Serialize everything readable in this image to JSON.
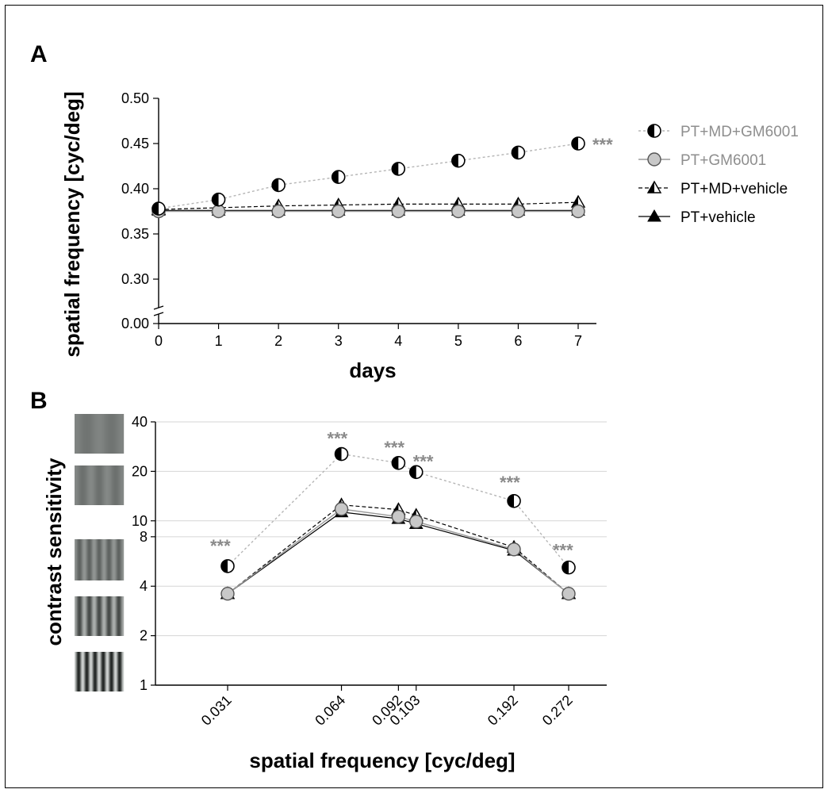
{
  "panels": {
    "a_label": "A",
    "b_label": "B"
  },
  "chart_data": [
    {
      "type": "line",
      "panel": "A",
      "title": "",
      "xlabel": "days",
      "ylabel": "spatial frequency [cyc/deg]",
      "x": [
        0,
        1,
        2,
        3,
        4,
        5,
        6,
        7
      ],
      "x_ticks": [
        "0",
        "1",
        "2",
        "3",
        "4",
        "5",
        "6",
        "7"
      ],
      "y_ticks": [
        "0.00",
        "0.30",
        "0.35",
        "0.40",
        "0.45",
        "0.50"
      ],
      "ylim": [
        0.3,
        0.5
      ],
      "y_axis_break": true,
      "legend_position": "right",
      "series": [
        {
          "name": "PT+MD+GM6001",
          "marker": "half-circle",
          "line": "dotted-gray",
          "color": "#aaaaaa",
          "values": [
            0.378,
            0.388,
            0.404,
            0.413,
            0.422,
            0.431,
            0.44,
            0.45
          ]
        },
        {
          "name": "PT+GM6001",
          "marker": "gray-circle",
          "line": "solid-gray",
          "color": "#888888",
          "values": [
            0.375,
            0.375,
            0.375,
            0.375,
            0.375,
            0.375,
            0.375,
            0.375
          ]
        },
        {
          "name": "PT+MD+vehicle",
          "marker": "half-triangle",
          "line": "dashed-black",
          "color": "#000000",
          "values": [
            0.377,
            0.379,
            0.381,
            0.382,
            0.383,
            0.383,
            0.383,
            0.385
          ]
        },
        {
          "name": "PT+vehicle",
          "marker": "black-triangle",
          "line": "solid-black",
          "color": "#000000",
          "values": [
            0.376,
            0.376,
            0.376,
            0.376,
            0.376,
            0.376,
            0.376,
            0.376
          ]
        }
      ],
      "annotations": [
        {
          "x": 7,
          "text": "***"
        }
      ]
    },
    {
      "type": "line",
      "panel": "B",
      "title": "",
      "xlabel": "spatial frequency [cyc/deg]",
      "ylabel": "contrast sensitivity",
      "y_scale": "log",
      "x_scale": "log",
      "categories": [
        "0.031",
        "0.064",
        "0.092",
        "0.103",
        "0.192",
        "0.272"
      ],
      "x": [
        0.031,
        0.064,
        0.092,
        0.103,
        0.192,
        0.272
      ],
      "y_ticks": [
        1,
        2,
        4,
        8,
        10,
        20,
        40
      ],
      "ylim": [
        1,
        40
      ],
      "grid": true,
      "series": [
        {
          "name": "PT+MD+GM6001",
          "marker": "half-circle",
          "values": [
            5.3,
            25.5,
            22.5,
            19.8,
            13.2,
            5.2
          ]
        },
        {
          "name": "PT+GM6001",
          "marker": "gray-circle",
          "values": [
            3.6,
            11.8,
            10.6,
            9.9,
            6.7,
            3.6
          ]
        },
        {
          "name": "PT+MD+vehicle",
          "marker": "half-triangle",
          "values": [
            3.6,
            12.5,
            11.7,
            10.8,
            6.9,
            3.6
          ]
        },
        {
          "name": "PT+vehicle",
          "marker": "black-triangle",
          "values": [
            3.6,
            11.3,
            10.3,
            9.6,
            6.6,
            3.6
          ]
        }
      ],
      "annotations": [
        {
          "x": 0.031,
          "text": "***"
        },
        {
          "x": 0.064,
          "text": "***"
        },
        {
          "x": 0.092,
          "text": "***"
        },
        {
          "x": 0.103,
          "text": "***"
        },
        {
          "x": 0.192,
          "text": "***"
        },
        {
          "x": 0.272,
          "text": "***"
        }
      ]
    }
  ]
}
